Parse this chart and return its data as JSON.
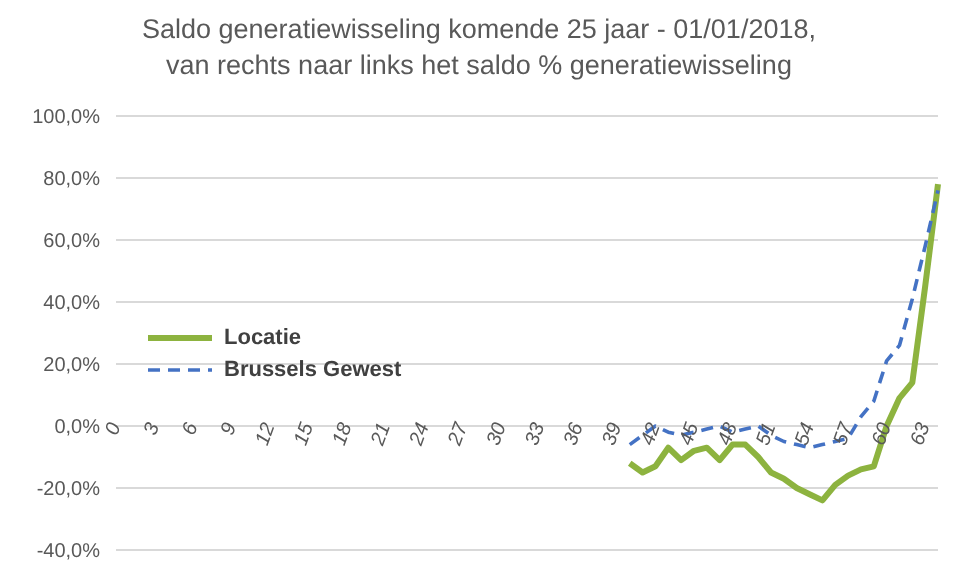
{
  "chart_data": {
    "type": "line",
    "title": "Saldo generatiewisseling komende 25 jaar - 01/01/2018,\nvan rechts naar links  het saldo % generatiewisseling",
    "categories": [
      "0",
      null,
      null,
      "3",
      null,
      null,
      "6",
      null,
      null,
      "9",
      null,
      null,
      "12",
      null,
      null,
      "15",
      null,
      null,
      "18",
      null,
      null,
      "21",
      null,
      null,
      "24",
      null,
      null,
      "27",
      null,
      null,
      "30",
      null,
      null,
      "33",
      null,
      null,
      "36",
      null,
      null,
      "39",
      null,
      null,
      "42",
      null,
      null,
      "45",
      null,
      null,
      "48",
      null,
      null,
      "51",
      null,
      null,
      "54",
      null,
      null,
      "57",
      null,
      null,
      "60",
      null,
      null,
      "63",
      null
    ],
    "series": [
      {
        "name": "Locatie",
        "color": "#8db33f",
        "line_style": "solid",
        "values": [
          null,
          null,
          null,
          null,
          null,
          null,
          null,
          null,
          null,
          null,
          null,
          null,
          null,
          null,
          null,
          null,
          null,
          null,
          null,
          null,
          null,
          null,
          null,
          null,
          null,
          null,
          null,
          null,
          null,
          null,
          null,
          null,
          null,
          null,
          null,
          null,
          null,
          null,
          null,
          null,
          -12,
          -15,
          -13,
          -7,
          -11,
          -8,
          -7,
          -11,
          -6,
          -6,
          -10,
          -15,
          -17,
          -20,
          -22,
          -24,
          -19,
          -16,
          -14,
          -13,
          0,
          9,
          14,
          45,
          78
        ]
      },
      {
        "name": "Brussels Gewest",
        "color": "#4472c4",
        "line_style": "dashed",
        "values": [
          null,
          null,
          null,
          null,
          null,
          null,
          null,
          null,
          null,
          null,
          null,
          null,
          null,
          null,
          null,
          null,
          null,
          null,
          null,
          null,
          null,
          null,
          null,
          null,
          null,
          null,
          null,
          null,
          null,
          null,
          null,
          null,
          null,
          null,
          null,
          null,
          null,
          null,
          null,
          null,
          -6,
          -3,
          0,
          -2,
          -3,
          -2,
          -1,
          0,
          -2,
          -1,
          0,
          -3,
          -5,
          -6,
          -7,
          -6,
          -5,
          -4,
          3,
          8,
          21,
          26,
          41,
          58,
          76
        ]
      }
    ],
    "ylim": [
      -40,
      100
    ],
    "yticks": [
      {
        "value": -40,
        "label": "-40,0%"
      },
      {
        "value": -20,
        "label": "-20,0%"
      },
      {
        "value": 0,
        "label": "0,0%"
      },
      {
        "value": 20,
        "label": "20,0%"
      },
      {
        "value": 40,
        "label": "40,0%"
      },
      {
        "value": 60,
        "label": "60,0%"
      },
      {
        "value": 80,
        "label": "80,0%"
      },
      {
        "value": 100,
        "label": "100,0%"
      }
    ],
    "grid": "y",
    "legend": "left",
    "marker": "none"
  }
}
